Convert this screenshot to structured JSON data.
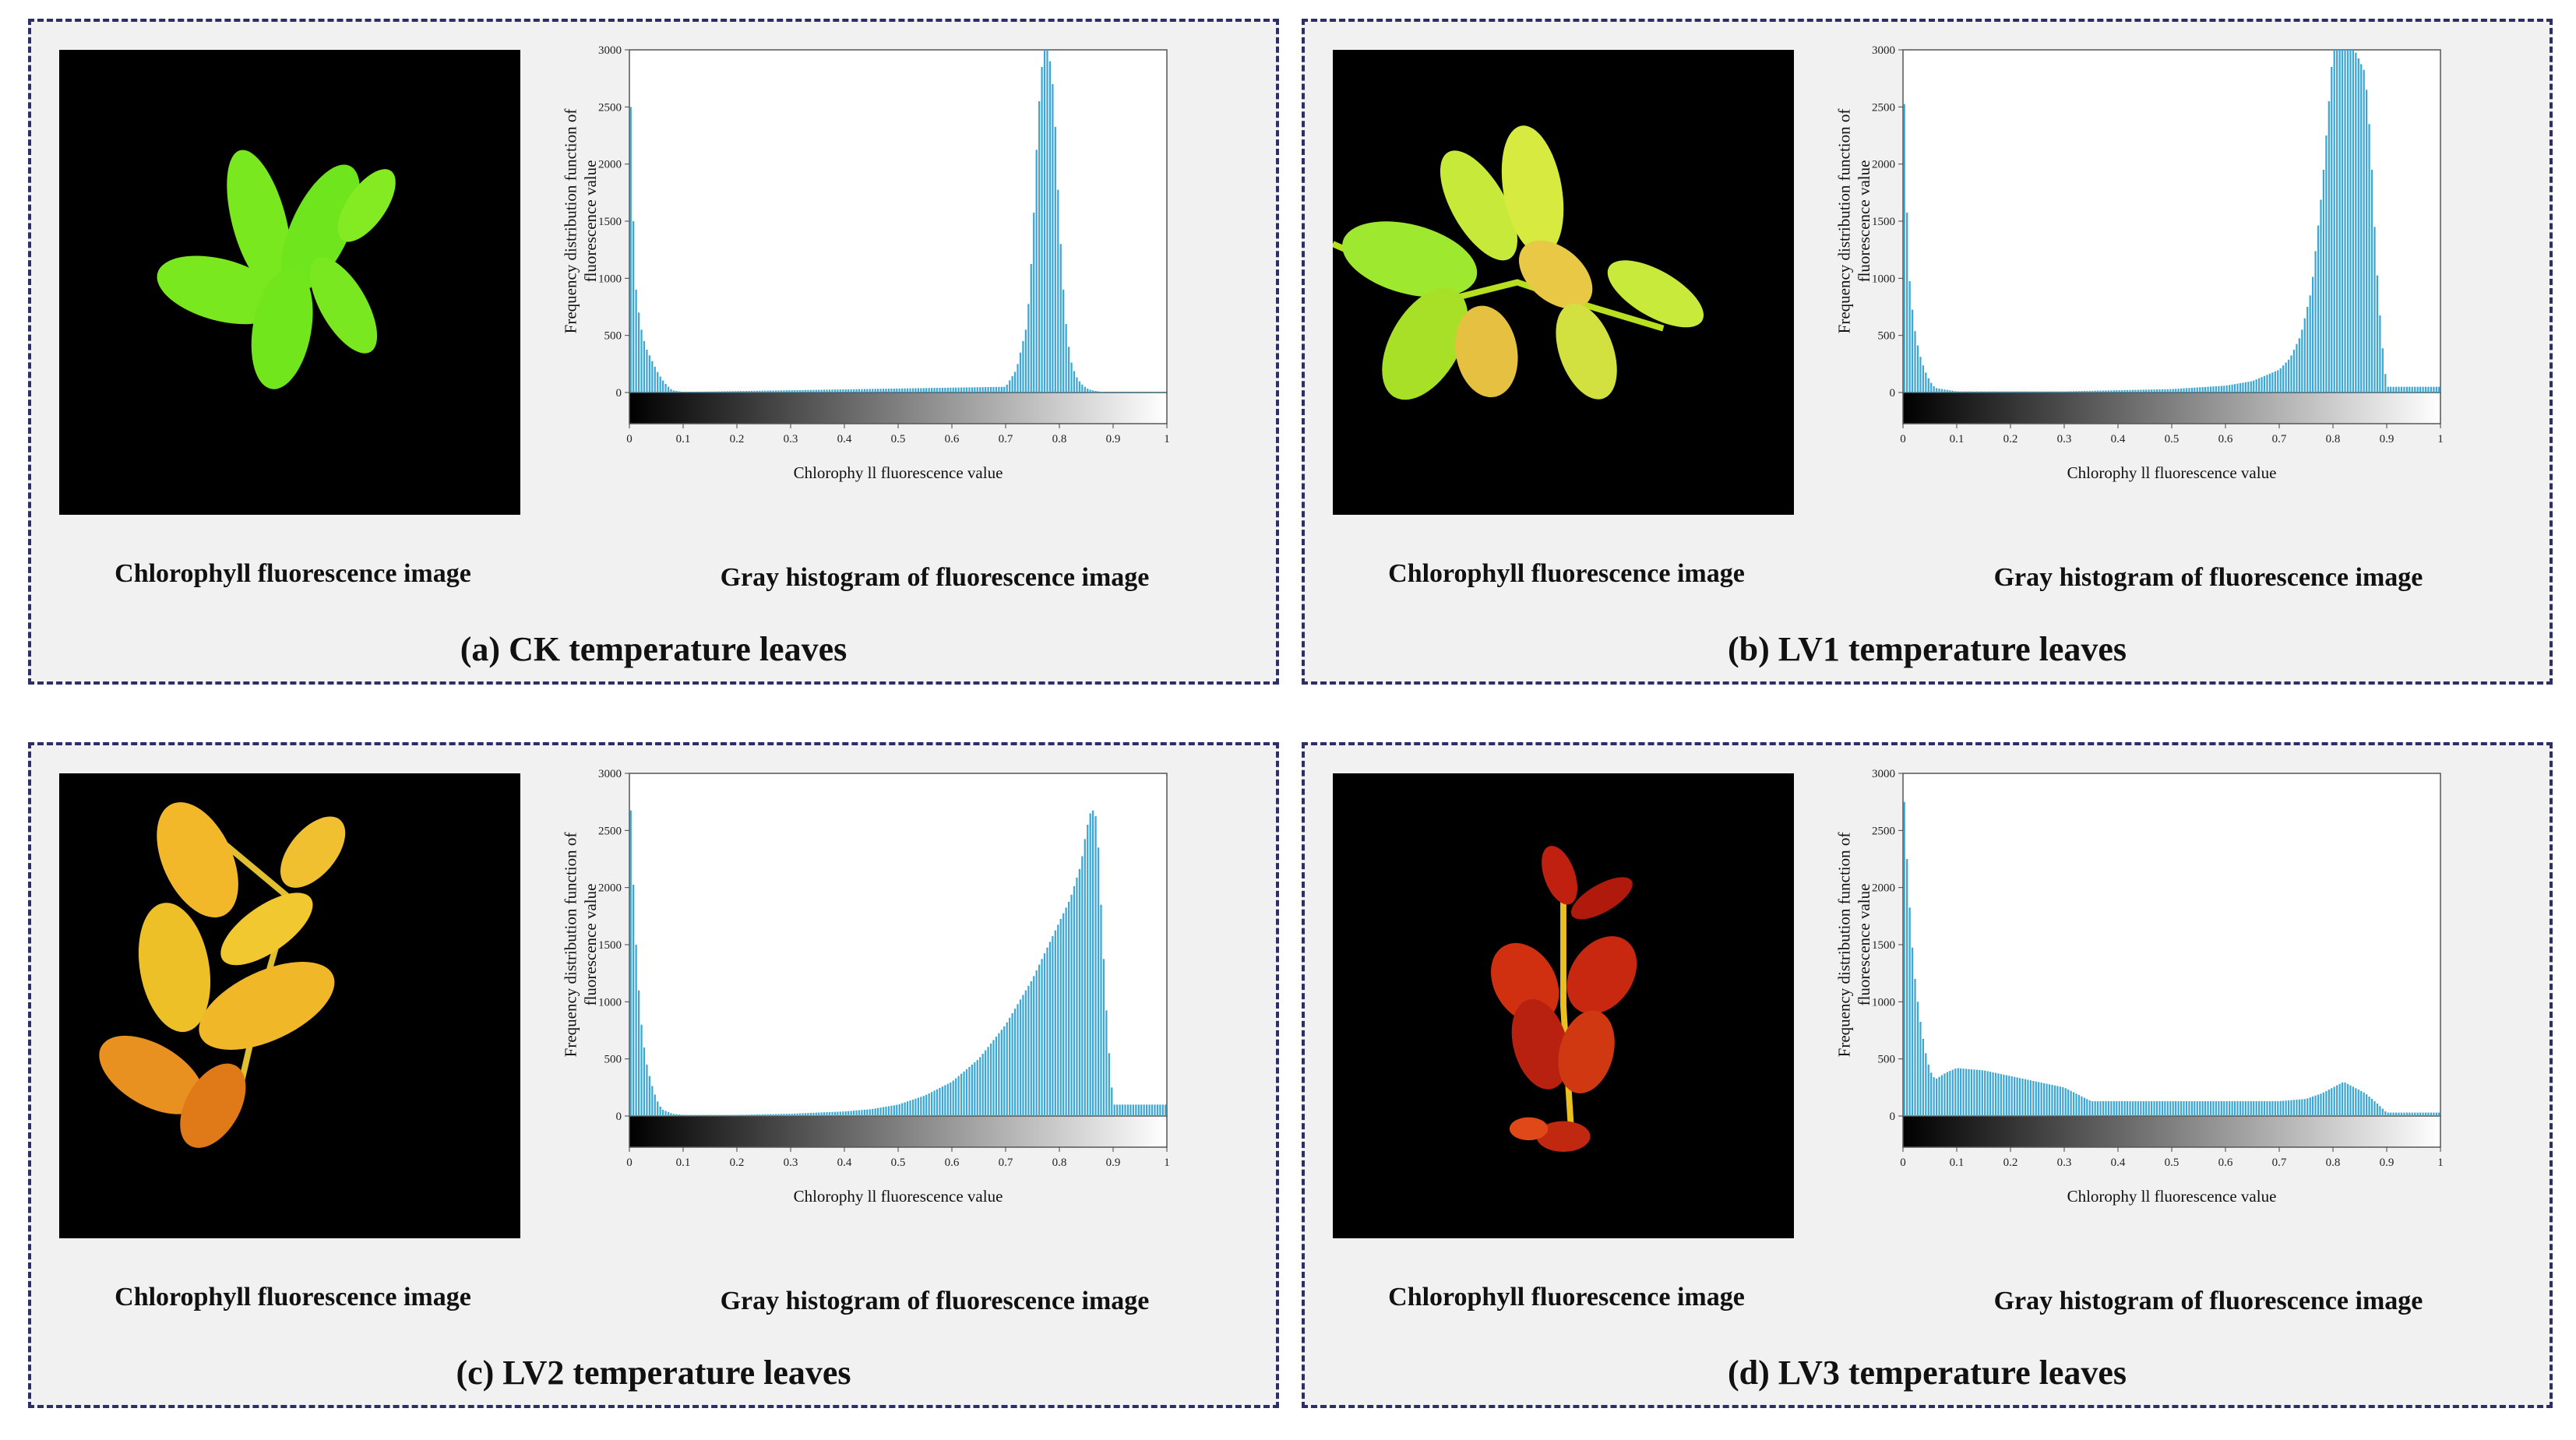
{
  "panels": [
    {
      "id": "a",
      "title": "(a) CK temperature leaves",
      "image_caption": "Chlorophyll fluorescence image",
      "histogram_caption": "Gray histogram of fluorescence image",
      "leaf_scheme": "green"
    },
    {
      "id": "b",
      "title": "(b) LV1 temperature  leaves",
      "image_caption": "Chlorophyll fluorescence image",
      "histogram_caption": "Gray histogram of fluorescence image",
      "leaf_scheme": "yellow-green"
    },
    {
      "id": "c",
      "title": "(c) LV2 temperature  leaves",
      "image_caption": "Chlorophyll fluorescence image",
      "histogram_caption": "Gray histogram of fluorescence image",
      "leaf_scheme": "yellow-orange"
    },
    {
      "id": "d",
      "title": "(d) LV3 temperature  leaves",
      "image_caption": "Chlorophyll fluorescence image",
      "histogram_caption": "Gray histogram of fluorescence image",
      "leaf_scheme": "red"
    }
  ],
  "colors": {
    "bar": "#3aa7d6",
    "border": "#2b2f66",
    "panel_bg": "#f1f1f1"
  },
  "chart_data": [
    {
      "type": "bar",
      "panel": "a",
      "xlabel": "Chlorophy ll fluorescence value",
      "ylabel": "Frequency distribution function of fluorescence value",
      "xlim": [
        0,
        1
      ],
      "ylim": [
        0,
        3000
      ],
      "xticks": [
        0,
        0.1,
        0.2,
        0.3,
        0.4,
        0.5,
        0.6,
        0.7,
        0.8,
        0.9,
        1
      ],
      "yticks": [
        0,
        500,
        1000,
        1500,
        2000,
        2500,
        3000
      ],
      "x": [
        0.0,
        0.01,
        0.02,
        0.03,
        0.04,
        0.05,
        0.06,
        0.07,
        0.08,
        0.1,
        0.7,
        0.72,
        0.74,
        0.75,
        0.76,
        0.77,
        0.78,
        0.79,
        0.8,
        0.81,
        0.82,
        0.83,
        0.84,
        0.85,
        0.86,
        0.88
      ],
      "values": [
        3000,
        1000,
        600,
        400,
        300,
        200,
        120,
        60,
        20,
        5,
        50,
        200,
        600,
        1300,
        2400,
        3000,
        3000,
        2600,
        1500,
        700,
        300,
        150,
        80,
        40,
        20,
        5
      ]
    },
    {
      "type": "bar",
      "panel": "b",
      "xlabel": "Chlorophy ll fluorescence value",
      "ylabel": "Frequency distribution function of fluorescence value",
      "xlim": [
        0,
        1
      ],
      "ylim": [
        0,
        3000
      ],
      "xticks": [
        0,
        0.1,
        0.2,
        0.3,
        0.4,
        0.5,
        0.6,
        0.7,
        0.8,
        0.9,
        1
      ],
      "yticks": [
        0,
        500,
        1000,
        1500,
        2000,
        2500,
        3000
      ],
      "x": [
        0.0,
        0.01,
        0.02,
        0.03,
        0.04,
        0.05,
        0.06,
        0.1,
        0.3,
        0.5,
        0.6,
        0.65,
        0.7,
        0.72,
        0.74,
        0.76,
        0.78,
        0.8,
        0.82,
        0.84,
        0.86,
        0.87,
        0.88,
        0.89,
        0.9
      ],
      "values": [
        3000,
        1100,
        600,
        350,
        200,
        100,
        40,
        10,
        10,
        30,
        60,
        100,
        200,
        300,
        500,
        900,
        1800,
        3000,
        3000,
        3000,
        2800,
        2200,
        1200,
        500,
        50
      ]
    },
    {
      "type": "bar",
      "panel": "c",
      "xlabel": "Chlorophy ll fluorescence value",
      "ylabel": "Frequency distribution function of fluorescence value",
      "xlim": [
        0,
        1
      ],
      "ylim": [
        0,
        3000
      ],
      "xticks": [
        0,
        0.1,
        0.2,
        0.3,
        0.4,
        0.5,
        0.6,
        0.7,
        0.8,
        0.9,
        1
      ],
      "yticks": [
        0,
        500,
        1000,
        1500,
        2000,
        2500,
        3000
      ],
      "x": [
        0.0,
        0.01,
        0.02,
        0.03,
        0.04,
        0.05,
        0.06,
        0.08,
        0.1,
        0.2,
        0.3,
        0.4,
        0.45,
        0.5,
        0.55,
        0.6,
        0.65,
        0.7,
        0.75,
        0.8,
        0.82,
        0.84,
        0.85,
        0.86,
        0.87,
        0.88,
        0.89,
        0.9
      ],
      "values": [
        3000,
        1700,
        900,
        500,
        300,
        150,
        60,
        20,
        10,
        10,
        20,
        40,
        60,
        100,
        180,
        300,
        500,
        800,
        1200,
        1700,
        1900,
        2200,
        2500,
        2700,
        2600,
        1600,
        700,
        100
      ]
    },
    {
      "type": "bar",
      "panel": "d",
      "xlabel": "Chlorophy ll fluorescence value",
      "ylabel": "Frequency distribution function of fluorescence value",
      "xlim": [
        0,
        1
      ],
      "ylim": [
        0,
        3000
      ],
      "xticks": [
        0,
        0.1,
        0.2,
        0.3,
        0.4,
        0.5,
        0.6,
        0.7,
        0.8,
        0.9,
        1
      ],
      "yticks": [
        0,
        500,
        1000,
        1500,
        2000,
        2500,
        3000
      ],
      "x": [
        0.0,
        0.01,
        0.02,
        0.03,
        0.04,
        0.05,
        0.06,
        0.08,
        0.1,
        0.15,
        0.2,
        0.25,
        0.3,
        0.35,
        0.4,
        0.5,
        0.6,
        0.7,
        0.75,
        0.78,
        0.8,
        0.82,
        0.84,
        0.86,
        0.88,
        0.9
      ],
      "values": [
        3000,
        2000,
        1300,
        900,
        600,
        400,
        320,
        380,
        420,
        400,
        350,
        300,
        250,
        130,
        130,
        130,
        130,
        130,
        150,
        200,
        250,
        300,
        250,
        200,
        120,
        30
      ]
    }
  ]
}
